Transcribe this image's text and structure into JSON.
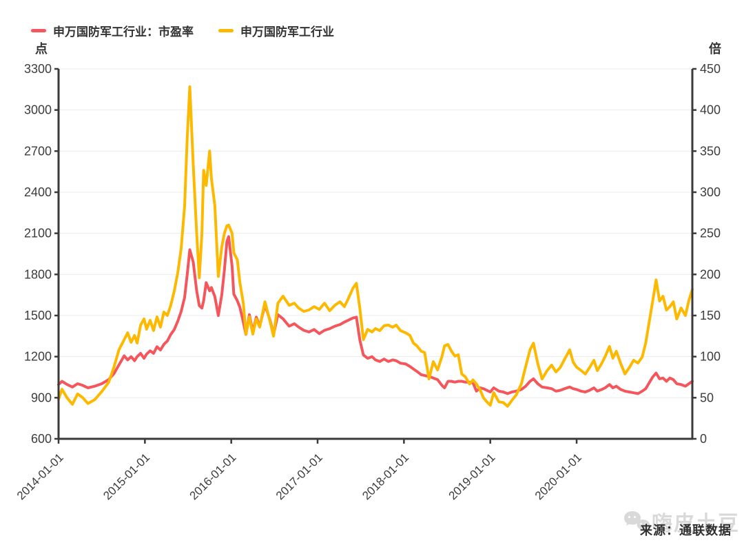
{
  "legend": [
    {
      "label": "申万国防军工行业：市盈率",
      "color": "#F4565C"
    },
    {
      "label": "申万国防军工行业",
      "color": "#FCB900"
    }
  ],
  "source_text": "来源：通联数据",
  "watermark_text": "嗨皮土豆",
  "watermark_color": "#d9d9d9",
  "chart_data": {
    "type": "line",
    "title": "",
    "left_axis": {
      "unit": "点",
      "min": 600,
      "max": 3300,
      "ticks": [
        3300,
        3000,
        2700,
        2400,
        2100,
        1800,
        1500,
        1200,
        900,
        600
      ]
    },
    "right_axis": {
      "unit": "倍",
      "min": 0,
      "max": 450,
      "ticks": [
        450,
        400,
        350,
        300,
        250,
        200,
        150,
        100,
        50,
        0
      ]
    },
    "x_axis": {
      "min_year": 2014,
      "max_year": 2021.34,
      "tick_years": [
        2014,
        2015,
        2016,
        2017,
        2018,
        2019,
        2020
      ],
      "tick_labels": [
        "2014-01-01",
        "2015-01-01",
        "2016-01-01",
        "2017-01-01",
        "2018-01-01",
        "2019-01-01",
        "2020-01-01"
      ]
    },
    "grid": true,
    "legend_position": "top-left",
    "x_years": [
      2014.0,
      2014.04,
      2014.1,
      2014.16,
      2014.22,
      2014.28,
      2014.34,
      2014.42,
      2014.5,
      2014.58,
      2014.64,
      2014.7,
      2014.76,
      2014.8,
      2014.84,
      2014.88,
      2014.91,
      2014.95,
      2014.99,
      2015.02,
      2015.06,
      2015.1,
      2015.14,
      2015.18,
      2015.22,
      2015.26,
      2015.3,
      2015.34,
      2015.38,
      2015.42,
      2015.46,
      2015.49,
      2015.52,
      2015.56,
      2015.6,
      2015.63,
      2015.66,
      2015.68,
      2015.71,
      2015.75,
      2015.77,
      2015.81,
      2015.85,
      2015.89,
      2015.92,
      2015.95,
      2015.97,
      2016.01,
      2016.03,
      2016.07,
      2016.1,
      2016.14,
      2016.17,
      2016.21,
      2016.25,
      2016.29,
      2016.33,
      2016.39,
      2016.45,
      2016.49,
      2016.54,
      2016.6,
      2016.67,
      2016.73,
      2016.78,
      2016.84,
      2016.9,
      2016.96,
      2017.02,
      2017.08,
      2017.14,
      2017.2,
      2017.26,
      2017.31,
      2017.35,
      2017.41,
      2017.45,
      2017.49,
      2017.53,
      2017.58,
      2017.63,
      2017.67,
      2017.72,
      2017.77,
      2017.82,
      2017.87,
      2017.91,
      2017.96,
      2018.02,
      2018.07,
      2018.11,
      2018.15,
      2018.2,
      2018.24,
      2018.29,
      2018.34,
      2018.39,
      2018.44,
      2018.47,
      2018.51,
      2018.55,
      2018.59,
      2018.63,
      2018.67,
      2018.71,
      2018.76,
      2018.8,
      2018.84,
      2018.88,
      2018.92,
      2018.96,
      2019.0,
      2019.04,
      2019.1,
      2019.15,
      2019.2,
      2019.25,
      2019.3,
      2019.36,
      2019.41,
      2019.46,
      2019.5,
      2019.55,
      2019.6,
      2019.66,
      2019.71,
      2019.76,
      2019.81,
      2019.86,
      2019.92,
      2019.96,
      2020.0,
      2020.05,
      2020.1,
      2020.15,
      2020.2,
      2020.24,
      2020.29,
      2020.33,
      2020.38,
      2020.42,
      2020.46,
      2020.51,
      2020.56,
      2020.61,
      2020.66,
      2020.71,
      2020.76,
      2020.8,
      2020.84,
      2020.88,
      2020.92,
      2020.96,
      2021.0,
      2021.04,
      2021.08,
      2021.12,
      2021.16,
      2021.21,
      2021.26,
      2021.3,
      2021.34
    ],
    "series": [
      {
        "name": "申万国防军工行业：市盈率",
        "axis": "right",
        "color": "#F4565C",
        "values": [
          66,
          70,
          66,
          63,
          67,
          65,
          62,
          64,
          67,
          72,
          79,
          90,
          101,
          96,
          100,
          95,
          100,
          104,
          98,
          103,
          107,
          104,
          112,
          108,
          115,
          119,
          127,
          133,
          143,
          155,
          172,
          200,
          230,
          215,
          180,
          162,
          159,
          168,
          190,
          180,
          184,
          173,
          150,
          175,
          205,
          240,
          246,
          210,
          176,
          168,
          160,
          142,
          127,
          151,
          130,
          148,
          137,
          163,
          144,
          127,
          151,
          146,
          137,
          140,
          136,
          132,
          130,
          133,
          128,
          132,
          134,
          137,
          139,
          142,
          144,
          147,
          148,
          120,
          102,
          98,
          100,
          96,
          94,
          97,
          94,
          96,
          95,
          92,
          91,
          88,
          85,
          82,
          78,
          77,
          76,
          74,
          72,
          65,
          62,
          70,
          70,
          69,
          70,
          70,
          69,
          69,
          68,
          58,
          62,
          61,
          59,
          57,
          62,
          58,
          57,
          55,
          57,
          58,
          60,
          64,
          70,
          73,
          67,
          63,
          62,
          61,
          58,
          59,
          61,
          63,
          61,
          60,
          58,
          57,
          59,
          62,
          58,
          60,
          62,
          66,
          62,
          64,
          60,
          58,
          57,
          56,
          55,
          58,
          61,
          68,
          75,
          80,
          73,
          74,
          70,
          74,
          72,
          67,
          66,
          64,
          67,
          70
        ]
      },
      {
        "name": "申万国防军工行业",
        "axis": "left",
        "color": "#FCB900",
        "values": [
          890,
          962,
          898,
          852,
          928,
          900,
          858,
          886,
          945,
          1012,
          1120,
          1250,
          1324,
          1374,
          1304,
          1354,
          1299,
          1430,
          1475,
          1400,
          1465,
          1390,
          1490,
          1415,
          1525,
          1500,
          1575,
          1680,
          1810,
          1990,
          2300,
          2800,
          3170,
          2600,
          2100,
          1775,
          2100,
          2560,
          2450,
          2700,
          2500,
          2300,
          1785,
          2000,
          2100,
          2155,
          2160,
          2100,
          1958,
          1907,
          1742,
          1590,
          1364,
          1490,
          1364,
          1475,
          1415,
          1600,
          1455,
          1349,
          1590,
          1641,
          1575,
          1590,
          1555,
          1530,
          1540,
          1565,
          1545,
          1590,
          1535,
          1575,
          1600,
          1565,
          1615,
          1700,
          1735,
          1550,
          1324,
          1399,
          1380,
          1405,
          1390,
          1425,
          1430,
          1415,
          1430,
          1390,
          1374,
          1354,
          1299,
          1279,
          1239,
          1230,
          1037,
          1163,
          1103,
          1200,
          1279,
          1289,
          1240,
          1204,
          1214,
          1073,
          1053,
          1000,
          1030,
          1000,
          960,
          900,
          870,
          845,
          937,
          870,
          865,
          838,
          880,
          920,
          1000,
          1128,
          1250,
          1298,
          1150,
          1037,
          1100,
          1138,
          1088,
          1120,
          1180,
          1249,
          1160,
          1123,
          1100,
          1073,
          1120,
          1173,
          1098,
          1150,
          1200,
          1274,
          1189,
          1239,
          1150,
          1073,
          1120,
          1173,
          1153,
          1198,
          1300,
          1450,
          1600,
          1760,
          1606,
          1641,
          1540,
          1565,
          1600,
          1475,
          1555,
          1500,
          1610,
          1690
        ]
      }
    ]
  }
}
